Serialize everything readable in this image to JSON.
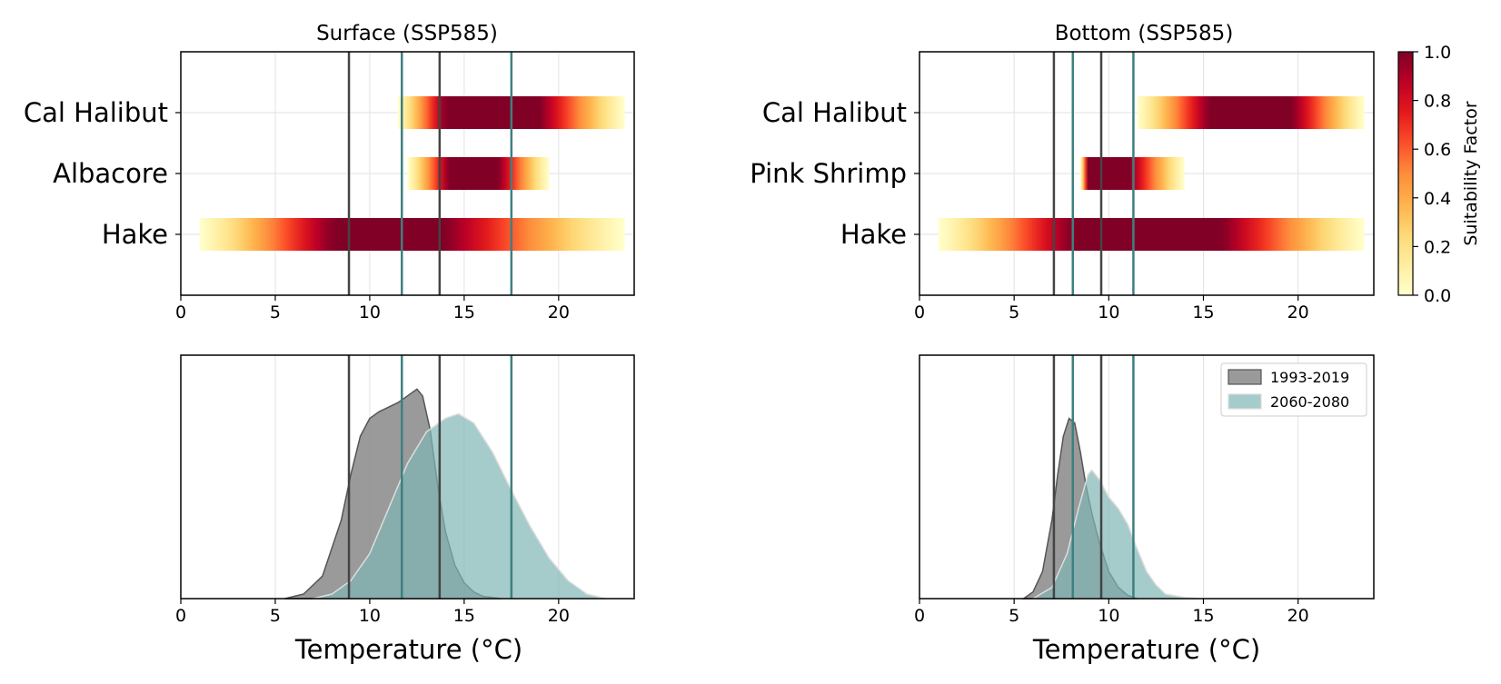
{
  "chart_data": [
    {
      "type": "heatmap",
      "title": "Surface (SSP585)",
      "xlim": [
        0,
        24
      ],
      "x_ticks": [
        0,
        5,
        10,
        15,
        20
      ],
      "grid": true,
      "categories": [
        "Cal Halibut",
        "Albacore",
        "Hake"
      ],
      "bands": [
        {
          "name": "Cal Halibut",
          "x_min": 11.5,
          "x_max": 23.5,
          "peak": 16.5,
          "peak_half_width": 2.5
        },
        {
          "name": "Albacore",
          "x_min": 12.0,
          "x_max": 19.5,
          "peak": 15.5,
          "peak_half_width": 1.3
        },
        {
          "name": "Hake",
          "x_min": 1.0,
          "x_max": 23.5,
          "peak": 11.0,
          "peak_half_width": 3.0
        }
      ],
      "vlines": [
        {
          "x": 8.9,
          "color": "#444444"
        },
        {
          "x": 11.7,
          "color": "#3f7f7f"
        },
        {
          "x": 13.7,
          "color": "#444444"
        },
        {
          "x": 17.5,
          "color": "#3f7f7f"
        }
      ]
    },
    {
      "type": "heatmap",
      "title": "Bottom (SSP585)",
      "xlim": [
        0,
        24
      ],
      "x_ticks": [
        0,
        5,
        10,
        15,
        20
      ],
      "grid": true,
      "categories": [
        "Cal Halibut",
        "Pink Shrimp",
        "Hake"
      ],
      "bands": [
        {
          "name": "Cal Halibut",
          "x_min": 11.5,
          "x_max": 23.5,
          "peak": 17.5,
          "peak_half_width": 2.2
        },
        {
          "name": "Pink Shrimp",
          "x_min": 8.5,
          "x_max": 14.0,
          "peak": 10.0,
          "peak_half_width": 1.1
        },
        {
          "name": "Hake",
          "x_min": 1.0,
          "x_max": 23.5,
          "peak": 12.0,
          "peak_half_width": 4.0
        }
      ],
      "vlines": [
        {
          "x": 7.1,
          "color": "#444444"
        },
        {
          "x": 8.1,
          "color": "#3f7f7f"
        },
        {
          "x": 9.6,
          "color": "#444444"
        },
        {
          "x": 11.3,
          "color": "#3f7f7f"
        }
      ]
    },
    {
      "type": "area",
      "xlabel": "Temperature (°C)",
      "xlim": [
        0,
        24
      ],
      "x_ticks": [
        0,
        5,
        10,
        15,
        20
      ],
      "grid": true,
      "series": [
        {
          "name": "1993-2019",
          "color": "#888888",
          "stroke": "#555555",
          "opacity": 0.85,
          "x": [
            5.5,
            6.5,
            7.5,
            8.5,
            9.0,
            9.5,
            10.0,
            10.5,
            11.0,
            11.5,
            12.0,
            12.5,
            12.8,
            13.2,
            13.6,
            14.0,
            14.5,
            15.0,
            15.5,
            16.0,
            17.0
          ],
          "y": [
            0.0,
            0.02,
            0.1,
            0.35,
            0.55,
            0.72,
            0.8,
            0.83,
            0.85,
            0.87,
            0.9,
            0.93,
            0.9,
            0.75,
            0.5,
            0.3,
            0.15,
            0.07,
            0.03,
            0.01,
            0.0
          ]
        },
        {
          "name": "2060-2080",
          "color": "#7fb5b5",
          "stroke": "#dddddd",
          "opacity": 0.7,
          "x": [
            7.0,
            8.0,
            9.0,
            10.0,
            11.0,
            12.0,
            13.0,
            14.0,
            14.7,
            15.5,
            16.5,
            17.5,
            18.5,
            19.5,
            20.5,
            21.5,
            22.5
          ],
          "y": [
            0.0,
            0.02,
            0.08,
            0.2,
            0.4,
            0.6,
            0.74,
            0.8,
            0.82,
            0.78,
            0.65,
            0.48,
            0.32,
            0.18,
            0.08,
            0.02,
            0.0
          ]
        }
      ],
      "vlines": [
        {
          "x": 8.9,
          "color": "#444444"
        },
        {
          "x": 11.7,
          "color": "#3f7f7f"
        },
        {
          "x": 13.7,
          "color": "#444444"
        },
        {
          "x": 17.5,
          "color": "#3f7f7f"
        }
      ]
    },
    {
      "type": "area",
      "xlabel": "Temperature (°C)",
      "xlim": [
        0,
        24
      ],
      "x_ticks": [
        0,
        5,
        10,
        15,
        20
      ],
      "grid": true,
      "legend": "top-right",
      "series": [
        {
          "name": "1993-2019",
          "color": "#888888",
          "stroke": "#555555",
          "opacity": 0.85,
          "x": [
            5.5,
            6.0,
            6.5,
            7.0,
            7.3,
            7.6,
            7.9,
            8.2,
            8.5,
            8.8,
            9.1,
            9.5,
            10.0,
            10.5,
            11.0,
            11.5
          ],
          "y": [
            0.0,
            0.03,
            0.12,
            0.35,
            0.55,
            0.72,
            0.8,
            0.78,
            0.65,
            0.5,
            0.38,
            0.25,
            0.12,
            0.05,
            0.015,
            0.0
          ]
        },
        {
          "name": "2060-2080",
          "color": "#7fb5b5",
          "stroke": "#dddddd",
          "opacity": 0.7,
          "x": [
            6.0,
            7.0,
            7.8,
            8.4,
            8.9,
            9.1,
            9.5,
            10.0,
            10.5,
            11.0,
            11.5,
            12.0,
            12.5,
            13.0,
            14.0,
            14.8
          ],
          "y": [
            0.0,
            0.05,
            0.2,
            0.4,
            0.55,
            0.57,
            0.53,
            0.45,
            0.4,
            0.33,
            0.22,
            0.12,
            0.06,
            0.02,
            0.005,
            0.0
          ]
        }
      ],
      "vlines": [
        {
          "x": 7.1,
          "color": "#444444"
        },
        {
          "x": 8.1,
          "color": "#3f7f7f"
        },
        {
          "x": 9.6,
          "color": "#444444"
        },
        {
          "x": 11.3,
          "color": "#3f7f7f"
        }
      ]
    }
  ],
  "colorbar": {
    "label": "Suitability Factor",
    "ticks": [
      "0.0",
      "0.2",
      "0.4",
      "0.6",
      "0.8",
      "1.0"
    ],
    "colormap": "YlOrRd",
    "range": [
      0,
      1
    ]
  }
}
